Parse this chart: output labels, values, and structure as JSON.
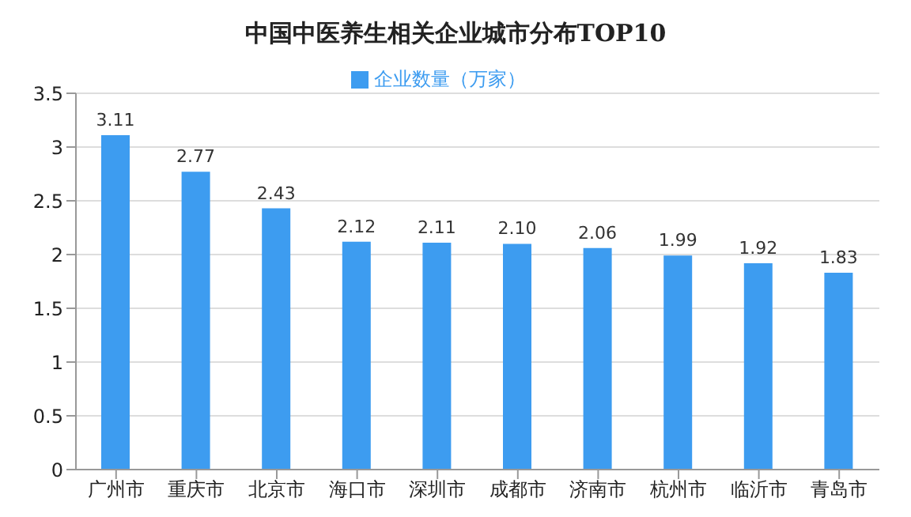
{
  "chart_data": {
    "type": "bar",
    "title": "中国中医养生相关企业城市分布TOP10",
    "categories": [
      "广州市",
      "重庆市",
      "北京市",
      "海口市",
      "深圳市",
      "成都市",
      "济南市",
      "杭州市",
      "临沂市",
      "青岛市"
    ],
    "series": [
      {
        "name": "企业数量（万家）",
        "color": "#3d9cf0",
        "values": [
          3.11,
          2.77,
          2.43,
          2.12,
          2.11,
          2.1,
          2.06,
          1.99,
          1.92,
          1.83
        ],
        "value_labels": [
          "3.11",
          "2.77",
          "2.43",
          "2.12",
          "2.11",
          "2.10",
          "2.06",
          "1.99",
          "1.92",
          "1.83"
        ]
      }
    ],
    "ylim": [
      0,
      3.5
    ],
    "yticks": [
      0,
      0.5,
      1,
      1.5,
      2,
      2.5,
      3,
      3.5
    ],
    "grid": "y",
    "legend": "top"
  }
}
